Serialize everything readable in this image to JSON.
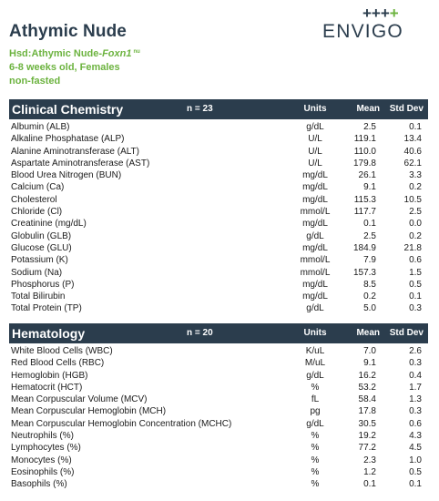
{
  "header": {
    "title": "Athymic Nude",
    "strain_prefix": "Hsd:Athymic Nude-",
    "strain_gene": "Foxn1",
    "strain_sup": "nu",
    "age_sex": "6-8 weeks old, Females",
    "condition": "non-fasted"
  },
  "logo": {
    "crosses_dark": "+++",
    "crosses_green": "+",
    "text": "ENVIGO"
  },
  "columns": {
    "units": "Units",
    "mean": "Mean",
    "sd": "Std Dev"
  },
  "chemistry": {
    "title": "Clinical Chemistry",
    "n": "n = 23",
    "rows": [
      {
        "name": "Albumin (ALB)",
        "units": "g/dL",
        "mean": "2.5",
        "sd": "0.1"
      },
      {
        "name": "Alkaline Phosphatase (ALP)",
        "units": "U/L",
        "mean": "119.1",
        "sd": "13.4"
      },
      {
        "name": "Alanine Aminotransferase (ALT)",
        "units": "U/L",
        "mean": "110.0",
        "sd": "40.6"
      },
      {
        "name": "Aspartate Aminotransferase (AST)",
        "units": "U/L",
        "mean": "179.8",
        "sd": "62.1"
      },
      {
        "name": "Blood Urea Nitrogen (BUN)",
        "units": "mg/dL",
        "mean": "26.1",
        "sd": "3.3"
      },
      {
        "name": "Calcium (Ca)",
        "units": "mg/dL",
        "mean": "9.1",
        "sd": "0.2"
      },
      {
        "name": "Cholesterol",
        "units": "mg/dL",
        "mean": "115.3",
        "sd": "10.5"
      },
      {
        "name": "Chloride (Cl)",
        "units": "mmol/L",
        "mean": "117.7",
        "sd": "2.5"
      },
      {
        "name": "Creatinine (mg/dL)",
        "units": "mg/dL",
        "mean": "0.1",
        "sd": "0.0"
      },
      {
        "name": "Globulin (GLB)",
        "units": "g/dL",
        "mean": "2.5",
        "sd": "0.2"
      },
      {
        "name": "Glucose (GLU)",
        "units": "mg/dL",
        "mean": "184.9",
        "sd": "21.8"
      },
      {
        "name": "Potassium (K)",
        "units": "mmol/L",
        "mean": "7.9",
        "sd": "0.6"
      },
      {
        "name": "Sodium (Na)",
        "units": "mmol/L",
        "mean": "157.3",
        "sd": "1.5"
      },
      {
        "name": "Phosphorus (P)",
        "units": "mg/dL",
        "mean": "8.5",
        "sd": "0.5"
      },
      {
        "name": "Total Bilirubin",
        "units": "mg/dL",
        "mean": "0.2",
        "sd": "0.1"
      },
      {
        "name": "Total Protein (TP)",
        "units": "g/dL",
        "mean": "5.0",
        "sd": "0.3"
      }
    ]
  },
  "hematology": {
    "title": "Hematology",
    "n": "n = 20",
    "rows": [
      {
        "name": "White Blood Cells (WBC)",
        "units": "K/uL",
        "mean": "7.0",
        "sd": "2.6"
      },
      {
        "name": "Red Blood Cells (RBC)",
        "units": "M/uL",
        "mean": "9.1",
        "sd": "0.3"
      },
      {
        "name": "Hemoglobin (HGB)",
        "units": "g/dL",
        "mean": "16.2",
        "sd": "0.4"
      },
      {
        "name": "Hematocrit (HCT)",
        "units": "%",
        "mean": "53.2",
        "sd": "1.7"
      },
      {
        "name": "Mean Corpuscular Volume (MCV)",
        "units": "fL",
        "mean": "58.4",
        "sd": "1.3"
      },
      {
        "name": "Mean Corpuscular Hemoglobin (MCH)",
        "units": "pg",
        "mean": "17.8",
        "sd": "0.3"
      },
      {
        "name": "Mean Corpuscular Hemoglobin Concentration (MCHC)",
        "units": "g/dL",
        "mean": "30.5",
        "sd": "0.6"
      },
      {
        "name": "Neutrophils (%)",
        "units": "%",
        "mean": "19.2",
        "sd": "4.3"
      },
      {
        "name": "Lymphocytes (%)",
        "units": "%",
        "mean": "77.2",
        "sd": "4.5"
      },
      {
        "name": "Monocytes (%)",
        "units": "%",
        "mean": "2.3",
        "sd": "1.0"
      },
      {
        "name": "Eosinophils (%)",
        "units": "%",
        "mean": "1.2",
        "sd": "0.5"
      },
      {
        "name": "Basophils (%)",
        "units": "%",
        "mean": "0.1",
        "sd": "0.1"
      }
    ]
  },
  "colors": {
    "navy": "#2b3d4d",
    "green": "#6cb33f"
  }
}
